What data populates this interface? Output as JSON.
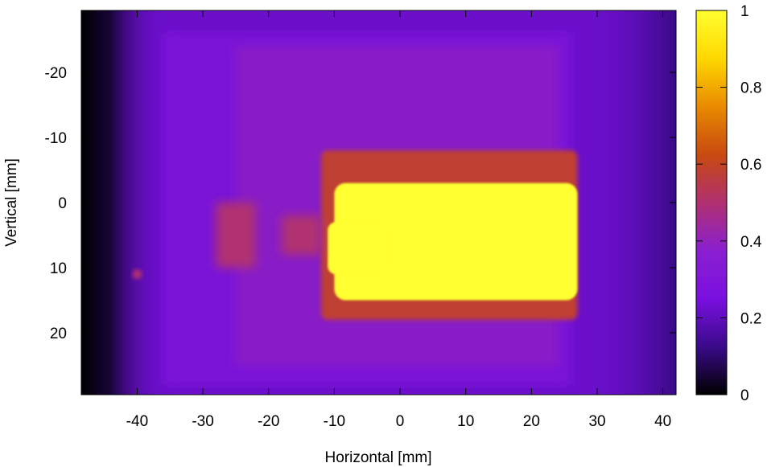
{
  "chart_data": {
    "type": "heatmap",
    "xlabel": "Horizontal [mm]",
    "ylabel": "Vertical [mm]",
    "xlim": [
      -48.5,
      42
    ],
    "ylim": [
      -29.5,
      29.5
    ],
    "y_inverted": true,
    "xticks": [
      -40,
      -30,
      -20,
      -10,
      0,
      10,
      20,
      30,
      40
    ],
    "yticks": [
      -20,
      -10,
      0,
      10,
      20
    ],
    "colorbar": {
      "range": [
        0,
        1
      ],
      "ticks": [
        0,
        0.2,
        0.4,
        0.6,
        0.8,
        1
      ],
      "tick_labels": [
        "0",
        "0.2",
        "0.4",
        "0.6",
        "0.8",
        "1"
      ],
      "colors": [
        "#000000",
        "#3a0a8a",
        "#7a10e0",
        "#8a1fd0",
        "#b03070",
        "#c84a10",
        "#e88a00",
        "#ffd800",
        "#ffff30"
      ]
    },
    "features": {
      "grid_pitch_mm": 10,
      "grid_x_lines_mm": [
        -35,
        -25,
        -15,
        -5,
        5,
        15
      ],
      "grid_y_lines_mm": [
        -24,
        -15,
        -5,
        4,
        14
      ],
      "saturated_core": {
        "x_range_mm": [
          -10,
          27
        ],
        "y_range_mm": [
          -3,
          15
        ],
        "value": 1.0
      },
      "halo_x_range_mm": [
        -12,
        27
      ],
      "halo_y_range_mm": [
        -8,
        18
      ],
      "halo_value": 0.58,
      "background_value": 0.22,
      "left_edge_value": 0.0,
      "hot_spot": {
        "x_mm": -40,
        "y_mm": 11,
        "value": 0.5
      }
    }
  }
}
